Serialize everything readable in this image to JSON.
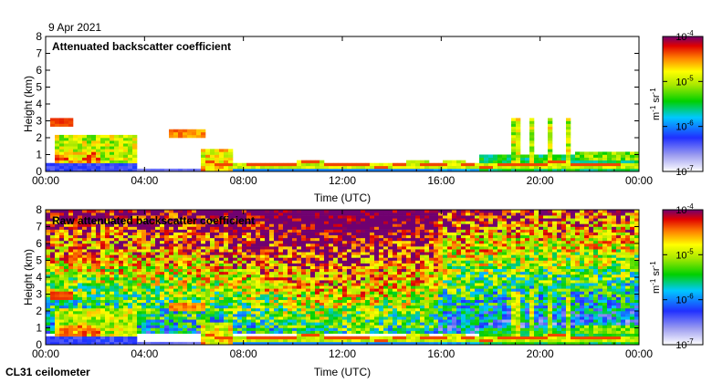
{
  "header": {
    "date": "9 Apr 2021"
  },
  "footer": {
    "instrument": "CL31 ceilometer"
  },
  "chart_data": [
    {
      "type": "heatmap",
      "title": "Attenuated backscatter coefficient",
      "xlabel": "Time (UTC)",
      "ylabel": "Height (km)",
      "x_ticks": [
        "00:00",
        "04:00",
        "08:00",
        "12:00",
        "16:00",
        "20:00",
        "00:00"
      ],
      "y_ticks": [
        "0",
        "1",
        "2",
        "3",
        "4",
        "5",
        "6",
        "7",
        "8"
      ],
      "xlim_hours": [
        0,
        24
      ],
      "ylim_km": [
        0,
        8
      ],
      "colorbar": {
        "label": "m-1 sr-1",
        "scale": "log",
        "range": [
          1e-07,
          0.0001
        ],
        "ticks": [
          "10-7",
          "10-6",
          "10-5",
          "10-4"
        ]
      },
      "layers": [
        {
          "feature": "boundary layer top",
          "hour_range": [
            6.5,
            24
          ],
          "height_km": [
            0.3,
            0.6
          ]
        },
        {
          "feature": "elevated aerosol/cloud",
          "hour_range": [
            0.2,
            3.6
          ],
          "height_km": [
            0.5,
            3.0
          ]
        },
        {
          "feature": "isolated cloud",
          "hour_range": [
            5.0,
            6.5
          ],
          "height_km": [
            2.0,
            2.5
          ]
        },
        {
          "feature": "virga/precip streaks",
          "hour_range": [
            18.5,
            21.5
          ],
          "height_km": [
            0.5,
            3.2
          ]
        }
      ]
    },
    {
      "type": "heatmap",
      "title": "Raw attenuated backscatter coefficient",
      "xlabel": "Time (UTC)",
      "ylabel": "Height (km)",
      "x_ticks": [
        "00:00",
        "04:00",
        "08:00",
        "12:00",
        "16:00",
        "20:00",
        "00:00"
      ],
      "y_ticks": [
        "0",
        "1",
        "2",
        "3",
        "4",
        "5",
        "6",
        "7",
        "8"
      ],
      "xlim_hours": [
        0,
        24
      ],
      "ylim_km": [
        0,
        8
      ],
      "colorbar": {
        "label": "m-1 sr-1",
        "scale": "log",
        "range": [
          1e-07,
          0.0001
        ],
        "ticks": [
          "10-7",
          "10-6",
          "10-5",
          "10-4"
        ]
      }
    }
  ]
}
